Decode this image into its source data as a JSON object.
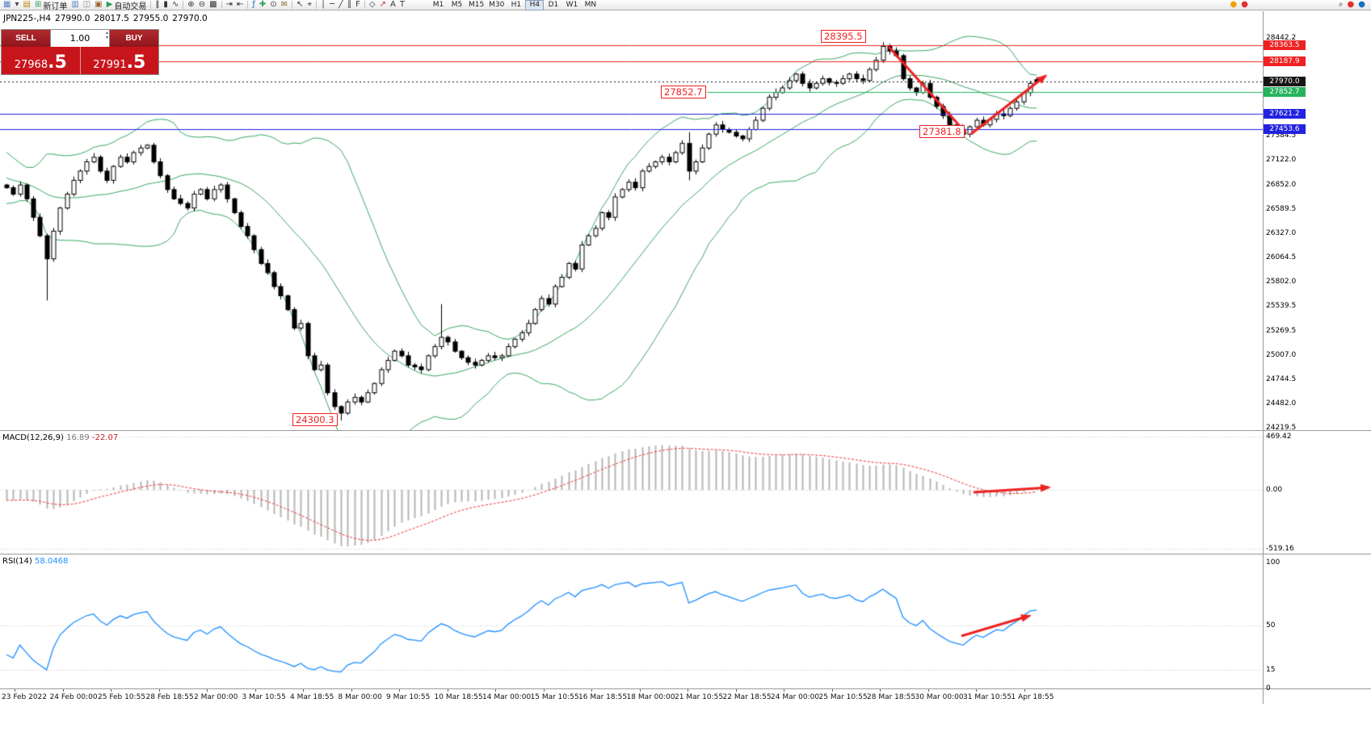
{
  "toolbar": {
    "left_items": [
      {
        "name": "new-chart-icon",
        "glyph": "▦",
        "color": "#5b7fc4"
      },
      {
        "name": "chart-list-dropdown-icon",
        "glyph": "▾",
        "color": "#444444"
      },
      {
        "name": "profiles-icon",
        "glyph": "▤",
        "color": "#b8860b"
      },
      {
        "name": "new-order-button",
        "glyph": "⊞",
        "color": "#2e9e5b",
        "label": "新订单"
      },
      {
        "name": "market-watch-icon",
        "glyph": "▥",
        "color": "#5b7fc4"
      },
      {
        "name": "data-window-icon",
        "glyph": "◫",
        "color": "#888888"
      },
      {
        "name": "terminal-icon",
        "glyph": "▣",
        "color": "#996633"
      },
      {
        "name": "autotrading-button",
        "glyph": "▶",
        "color": "#2e9e5b",
        "label": "自动交易"
      },
      {
        "sep": true
      },
      {
        "name": "bar-chart-icon",
        "glyph": "‖",
        "color": "#333333"
      },
      {
        "name": "candlestick-chart-icon",
        "glyph": "▮",
        "color": "#333333"
      },
      {
        "name": "line-chart-icon",
        "glyph": "∿",
        "color": "#333333"
      },
      {
        "sep": true
      },
      {
        "name": "zoom-in-icon",
        "glyph": "⊕",
        "color": "#333333"
      },
      {
        "name": "zoom-out-icon",
        "glyph": "⊖",
        "color": "#333333"
      },
      {
        "name": "tile-windows-icon",
        "glyph": "▩",
        "color": "#333333"
      },
      {
        "sep": true
      },
      {
        "name": "auto-scroll-icon",
        "glyph": "⇥",
        "color": "#333333"
      },
      {
        "name": "chart-shift-icon",
        "glyph": "⇤",
        "color": "#333333"
      },
      {
        "sep": true
      },
      {
        "name": "indicators-icon",
        "glyph": "ƒ",
        "color": "#1971c2"
      },
      {
        "name": "add-indicator-icon",
        "glyph": "✚",
        "color": "#2e9e5b"
      },
      {
        "name": "period-icon",
        "glyph": "⊙",
        "color": "#333333"
      },
      {
        "name": "mail-icon",
        "glyph": "✉",
        "color": "#8a6d3b"
      },
      {
        "sep": true
      },
      {
        "name": "cursor-icon",
        "glyph": "↖",
        "color": "#333333"
      },
      {
        "name": "crosshair-icon",
        "glyph": "⌖",
        "color": "#333333"
      },
      {
        "sep": true
      },
      {
        "name": "vertical-line-icon",
        "glyph": "│",
        "color": "#333333"
      },
      {
        "name": "horizontal-line-icon",
        "glyph": "─",
        "color": "#333333"
      },
      {
        "name": "trendline-icon",
        "glyph": "╱",
        "color": "#333333"
      },
      {
        "name": "channel-icon",
        "glyph": "∥",
        "color": "#333333"
      },
      {
        "name": "fibonacci-icon",
        "glyph": "F",
        "color": "#333333"
      },
      {
        "sep": true
      },
      {
        "name": "shapes-icon",
        "glyph": "◇",
        "color": "#333333"
      },
      {
        "name": "arrows-icon",
        "glyph": "↗",
        "color": "#cc3333"
      },
      {
        "name": "text-icon",
        "glyph": "A",
        "color": "#333333"
      },
      {
        "name": "text-label-icon",
        "glyph": "T",
        "color": "#333333"
      }
    ],
    "right_items": [
      {
        "name": "alert-orange-icon",
        "glyph": "●",
        "color": "#f59f00"
      },
      {
        "name": "alert-red-icon",
        "glyph": "●",
        "color": "#e03131"
      }
    ],
    "far_right_items": [
      {
        "name": "search-icon",
        "glyph": "⌕",
        "color": "#333333"
      },
      {
        "name": "notification-icon",
        "glyph": "●",
        "color": "#e03131"
      },
      {
        "name": "account-icon",
        "glyph": "●",
        "color": "#1971c2"
      }
    ]
  },
  "timeframes": {
    "items": [
      "M1",
      "M5",
      "M15",
      "M30",
      "H1",
      "H4",
      "D1",
      "W1",
      "MN"
    ],
    "active": "H4"
  },
  "chart_header": {
    "symbol_period": "JPN225-,H4",
    "open": "27990.0",
    "high": "28017.5",
    "low": "27955.0",
    "close": "27970.0"
  },
  "one_click": {
    "sell_label": "SELL",
    "buy_label": "BUY",
    "volume": "1.00",
    "sell_price_main": "27968",
    "sell_price_frac": ".5",
    "buy_price_main": "27991",
    "buy_price_frac": ".5"
  },
  "chart_data": [
    {
      "type": "candlestick",
      "title": "JPN225- H4 candlestick chart with Bollinger Bands",
      "symbol": "JPN225-",
      "timeframe": "H4",
      "last_bar": {
        "open": 27990.0,
        "high": 28017.5,
        "low": 27955.0,
        "close": 27970.0
      },
      "y_axis": {
        "ticks": [
          "28442.2",
          "27384.5",
          "27122.0",
          "26852.0",
          "26589.5",
          "26327.0",
          "26064.5",
          "25802.0",
          "25539.5",
          "25269.5",
          "25007.0",
          "24744.5",
          "24482.0",
          "24219.5"
        ]
      },
      "x_axis": {
        "labels": [
          "23 Feb 2022",
          "24 Feb 00:00",
          "25 Feb 10:55",
          "28 Feb 18:55",
          "2 Mar 00:00",
          "3 Mar 10:55",
          "4 Mar 18:55",
          "8 Mar 00:00",
          "9 Mar 10:55",
          "10 Mar 18:55",
          "14 Mar 00:00",
          "15 Mar 10:55",
          "16 Mar 18:55",
          "18 Mar 00:00",
          "21 Mar 10:55",
          "22 Mar 18:55",
          "24 Mar 00:00",
          "25 Mar 10:55",
          "28 Mar 18:55",
          "30 Mar 00:00",
          "31 Mar 10:55",
          "1 Apr 18:55"
        ]
      },
      "levels": [
        {
          "value": 28363.5,
          "label": "28363.5",
          "color": "#ee2222",
          "style": "solid"
        },
        {
          "value": 28187.9,
          "label": "28187.9",
          "color": "#ee2222",
          "style": "solid"
        },
        {
          "value": 27970.0,
          "label": "27970.0",
          "color": "#151515",
          "style": "dotted"
        },
        {
          "value": 27852.7,
          "label": "27852.7",
          "color": "#26b35d",
          "style": "solid",
          "start_frac": 0.56
        },
        {
          "value": 27621.2,
          "label": "27621.2",
          "color": "#2222e0",
          "style": "solid"
        },
        {
          "value": 27453.6,
          "label": "27453.6",
          "color": "#2222e0",
          "style": "solid"
        }
      ],
      "annotations": [
        {
          "text": "28395.5"
        },
        {
          "text": "27852.7"
        },
        {
          "text": "27381.8"
        },
        {
          "text": "24300.3"
        }
      ],
      "bollinger": {
        "period": 20,
        "deviation": 2
      },
      "pre_closes": [
        27300,
        27250,
        27200,
        27150,
        27100,
        27000,
        26950,
        26900,
        26850,
        26800,
        26850,
        26900,
        26950,
        26900,
        26850,
        26800,
        26750,
        26800,
        26850,
        26850
      ],
      "closes": [
        26820,
        26750,
        26850,
        26700,
        26500,
        26300,
        26050,
        26350,
        26600,
        26750,
        26900,
        27000,
        27100,
        27150,
        27000,
        26900,
        27050,
        27150,
        27100,
        27200,
        27250,
        27280,
        27100,
        26950,
        26800,
        26700,
        26650,
        26600,
        26750,
        26800,
        26700,
        26800,
        26850,
        26700,
        26550,
        26400,
        26300,
        26150,
        26000,
        25900,
        25750,
        25650,
        25500,
        25300,
        25350,
        25000,
        24850,
        24900,
        24600,
        24450,
        24380,
        24500,
        24550,
        24500,
        24600,
        24700,
        24850,
        24950,
        25050,
        25000,
        24900,
        24880,
        24850,
        25000,
        25100,
        25200,
        25150,
        25050,
        24980,
        24930,
        24900,
        24950,
        25000,
        24980,
        25000,
        25100,
        25180,
        25250,
        25350,
        25500,
        25620,
        25560,
        25750,
        25850,
        26000,
        25940,
        26200,
        26300,
        26380,
        26550,
        26500,
        26720,
        26800,
        26880,
        26820,
        27000,
        27050,
        27100,
        27150,
        27100,
        27200,
        27300,
        27000,
        27100,
        27250,
        27400,
        27500,
        27450,
        27420,
        27380,
        27350,
        27450,
        27550,
        27680,
        27800,
        27850,
        27900,
        27980,
        28050,
        27950,
        27900,
        27950,
        28000,
        27960,
        27950,
        28000,
        28050,
        28000,
        27980,
        28100,
        28200,
        28350,
        28300,
        28250,
        28000,
        27900,
        27850,
        27950,
        27800,
        27700,
        27600,
        27500,
        27450,
        27400,
        27480,
        27550,
        27500,
        27560,
        27620,
        27600,
        27680,
        27750,
        27850,
        27950,
        27970
      ],
      "special_bars": {
        "6": {
          "low": 25600
        },
        "50": {
          "low": 24300.3
        },
        "65": {
          "high": 25560
        },
        "102": {
          "high": 27420,
          "low": 26900
        },
        "131": {
          "high": 28395.5
        },
        "143": {
          "low": 27381.8
        },
        "154": {
          "open": 27990,
          "high": 28017.5,
          "low": 27955,
          "close": 27970
        }
      }
    },
    {
      "type": "macd",
      "label": "MACD(12,26,9)",
      "value_main": "16.89",
      "value_signal": "-22.07",
      "scale_labels": [
        "469.42",
        "0.00",
        "-519.16"
      ]
    },
    {
      "type": "rsi",
      "label": "RSI(14)",
      "value": "58.0468",
      "scale_labels": [
        "100",
        "50",
        "15",
        "0"
      ],
      "level_lines": [
        50,
        15
      ]
    }
  ],
  "colors": {
    "up_candle": "#ffffff",
    "down_candle": "#000000",
    "candle_outline": "#000000",
    "bollinger": "#3aa864",
    "macd_histogram": "#b5b5b5",
    "macd_signal": "#ee3333",
    "rsi_line": "#1e90ff",
    "annotation_red": "#ee2222",
    "level_red": "#ee2222",
    "level_blue": "#2222e0",
    "level_green": "#26b35d",
    "current_price_badge": "#151515",
    "sell_buy_dark": "#8f161b",
    "price_row_red": "#c8151c"
  }
}
